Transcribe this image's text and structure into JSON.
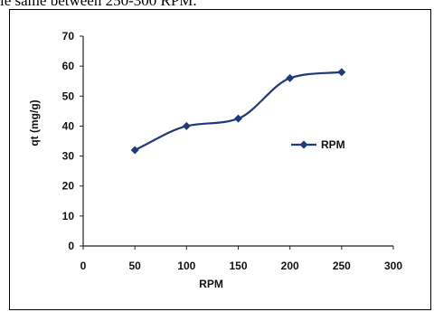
{
  "caption": "ie same between 250-300 RPM.",
  "colors": {
    "series": "#1f3a7a",
    "axis": "#222222"
  },
  "chart_data": {
    "type": "line",
    "x": [
      50,
      100,
      150,
      200,
      250
    ],
    "series": [
      {
        "name": "RPM",
        "values": [
          32,
          40,
          42.5,
          56,
          58
        ]
      }
    ],
    "xlim": [
      0,
      300
    ],
    "ylim": [
      0,
      70
    ],
    "xticks": [
      0,
      50,
      100,
      150,
      200,
      250,
      300
    ],
    "yticks": [
      0,
      10,
      20,
      30,
      40,
      50,
      60,
      70
    ],
    "xlabel": "RPM",
    "ylabel": "qt (mg/g)",
    "grid": false,
    "legend_position": "right",
    "smooth": true,
    "marker": "diamond"
  }
}
